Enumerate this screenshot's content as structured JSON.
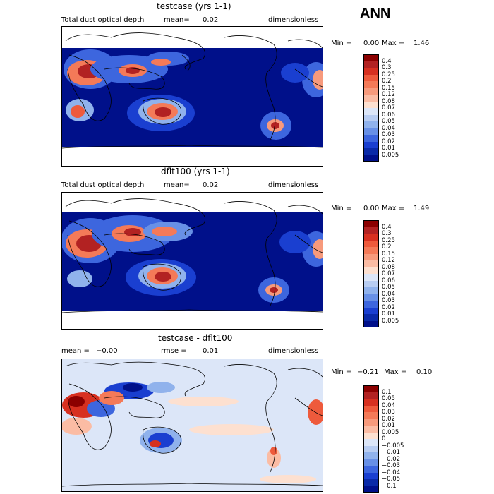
{
  "season": "ANN",
  "panels": [
    {
      "title": "testcase (yrs 1-1)",
      "left_label": "Total dust optical depth",
      "mean_label": "mean=",
      "mean_value": "0.02",
      "units": "dimensionless",
      "min_label": "Min =",
      "min_value": "0.00",
      "max_label": "Max =",
      "max_value": "1.46",
      "levels": [
        "0.4",
        "0.3",
        "0.25",
        "0.2",
        "0.15",
        "0.12",
        "0.08",
        "0.07",
        "0.06",
        "0.05",
        "0.04",
        "0.03",
        "0.02",
        "0.01",
        "0.005"
      ],
      "colors": [
        "#8b0000",
        "#b22222",
        "#d73020",
        "#ee5a3c",
        "#f47a58",
        "#f79a7c",
        "#fbbca4",
        "#fde0d0",
        "#dce6f8",
        "#b8cdf2",
        "#90b2ec",
        "#6890e6",
        "#3d66de",
        "#1a3fd0",
        "#0a2aa8",
        "#00108a"
      ]
    },
    {
      "title": "dflt100 (yrs 1-1)",
      "left_label": "Total dust optical depth",
      "mean_label": "mean=",
      "mean_value": "0.02",
      "units": "dimensionless",
      "min_label": "Min =",
      "min_value": "0.00",
      "max_label": "Max =",
      "max_value": "1.49",
      "levels": [
        "0.4",
        "0.3",
        "0.25",
        "0.2",
        "0.15",
        "0.12",
        "0.08",
        "0.07",
        "0.06",
        "0.05",
        "0.04",
        "0.03",
        "0.02",
        "0.01",
        "0.005"
      ],
      "colors": [
        "#8b0000",
        "#b22222",
        "#d73020",
        "#ee5a3c",
        "#f47a58",
        "#f79a7c",
        "#fbbca4",
        "#fde0d0",
        "#dce6f8",
        "#b8cdf2",
        "#90b2ec",
        "#6890e6",
        "#3d66de",
        "#1a3fd0",
        "#0a2aa8",
        "#00108a"
      ]
    },
    {
      "title": "testcase - dflt100",
      "mean_label": "mean =",
      "mean_value": "−0.00",
      "rmse_label": "rmse =",
      "rmse_value": "0.01",
      "units": "dimensionless",
      "min_label": "Min =",
      "min_value": "−0.21",
      "max_label": "Max =",
      "max_value": "0.10",
      "levels": [
        "0.1",
        "0.05",
        "0.04",
        "0.03",
        "0.02",
        "0.01",
        "0.005",
        "0",
        "−0.005",
        "−0.01",
        "−0.02",
        "−0.03",
        "−0.04",
        "−0.05",
        "−0.1"
      ],
      "colors": [
        "#8b0000",
        "#b22222",
        "#d73020",
        "#ee5a3c",
        "#f47a58",
        "#f79a7c",
        "#fbbca4",
        "#fde0d0",
        "#dce6f8",
        "#b8cdf2",
        "#90b2ec",
        "#6890e6",
        "#3d66de",
        "#1a3fd0",
        "#0a2aa8",
        "#00108a"
      ]
    }
  ]
}
